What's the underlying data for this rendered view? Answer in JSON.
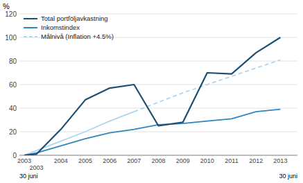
{
  "chart_data": {
    "type": "line",
    "y_label": "%",
    "annotations": [
      "30 juni",
      "30 juni"
    ],
    "x": [
      2002.5,
      2003,
      2004,
      2005,
      2006,
      2007,
      2008,
      2009,
      2010,
      2011,
      2012,
      2013
    ],
    "xlim": [
      2002.3,
      2013.7
    ],
    "xticks": [
      {
        "value": 2002.5,
        "label": "2003"
      },
      2003,
      2004,
      2005,
      2006,
      2007,
      2008,
      2009,
      2010,
      2011,
      2012,
      2013
    ],
    "ylim": [
      0,
      120
    ],
    "yticks": [
      0,
      20,
      40,
      60,
      80,
      100,
      120
    ],
    "grid": true,
    "legend": "upper left",
    "series": [
      {
        "name": "Total portföljavkastning",
        "color": "#1b4f72",
        "line_style": "solid",
        "values": [
          0,
          1,
          22,
          47,
          57,
          60,
          25,
          28,
          70,
          69,
          87,
          100
        ]
      },
      {
        "name": "Inkomstindex",
        "color": "#2e86c1",
        "line_style": "solid",
        "values": [
          0,
          2,
          8,
          14,
          19,
          22,
          26,
          27,
          29,
          31,
          37,
          39
        ]
      },
      {
        "name": "Målnivå (Inflation +4.5%)",
        "color": "#aed6f1",
        "line_style": "dashed",
        "values": [
          null,
          null,
          null,
          null,
          null,
          37,
          45,
          53,
          60,
          67,
          74,
          81
        ]
      },
      {
        "color": "#aed6f1",
        "line_style": "solid",
        "values": [
          0,
          4,
          12,
          20,
          29,
          37,
          null,
          null,
          null,
          null,
          null,
          null
        ]
      }
    ]
  }
}
